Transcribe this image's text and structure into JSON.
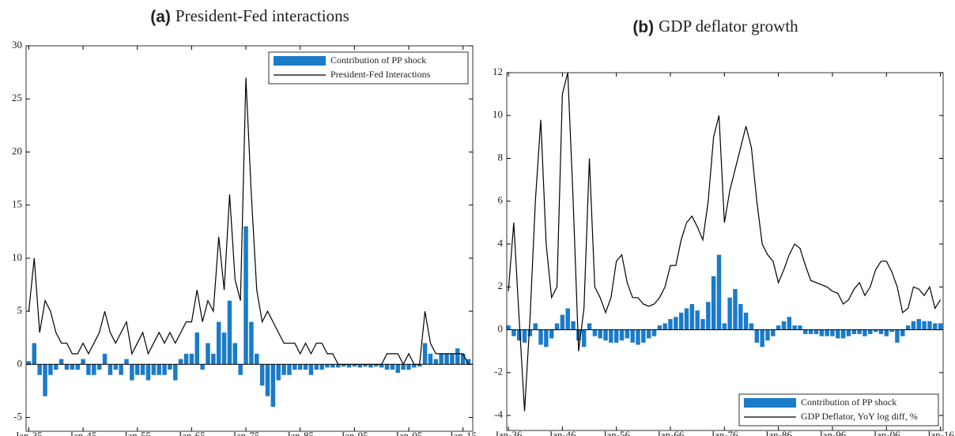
{
  "chart_data": [
    {
      "type": "bar_line",
      "title_label": "(a)",
      "title": "President-Fed interactions",
      "legend": "upper right",
      "x": [
        1935,
        1936,
        1937,
        1938,
        1939,
        1940,
        1941,
        1942,
        1943,
        1944,
        1945,
        1946,
        1947,
        1948,
        1949,
        1950,
        1951,
        1952,
        1953,
        1954,
        1955,
        1956,
        1957,
        1958,
        1959,
        1960,
        1961,
        1962,
        1963,
        1964,
        1965,
        1966,
        1967,
        1968,
        1969,
        1970,
        1971,
        1972,
        1973,
        1974,
        1975,
        1976,
        1977,
        1978,
        1979,
        1980,
        1981,
        1982,
        1983,
        1984,
        1985,
        1986,
        1987,
        1988,
        1989,
        1990,
        1991,
        1992,
        1993,
        1994,
        1995,
        1996,
        1997,
        1998,
        1999,
        2000,
        2001,
        2002,
        2003,
        2004,
        2005,
        2006,
        2007,
        2008,
        2009,
        2010,
        2011,
        2012,
        2013,
        2014,
        2015,
        2016
      ],
      "series": [
        {
          "name": "Contribution of PP shock",
          "kind": "bar",
          "color": "#1a7bc9",
          "values": [
            0.3,
            2,
            -1,
            -3,
            -1,
            -0.5,
            0.5,
            -0.5,
            -0.5,
            -0.5,
            0.5,
            -1,
            -1,
            -0.5,
            1,
            -1,
            -0.5,
            -1,
            0.5,
            -1.5,
            -1,
            -1,
            -1.5,
            -1,
            -1,
            -1,
            -0.5,
            -1.5,
            0.5,
            1,
            1,
            3,
            -0.5,
            2,
            1,
            4,
            3,
            6,
            2,
            -1,
            13,
            4,
            1,
            -2,
            -3,
            -4,
            -1.5,
            -1,
            -1,
            -0.5,
            -0.5,
            -0.5,
            -1,
            -0.5,
            -0.5,
            -0.3,
            -0.3,
            -0.3,
            -0.2,
            -0.3,
            -0.2,
            -0.3,
            -0.2,
            -0.3,
            -0.2,
            -0.3,
            -0.5,
            -0.5,
            -0.8,
            -0.5,
            -0.5,
            -0.3,
            -0.2,
            2,
            1,
            0.5,
            1,
            1,
            1,
            1.5,
            1,
            0.5
          ]
        },
        {
          "name": "President-Fed Interactions",
          "kind": "line",
          "color": "#000000",
          "values": [
            5,
            10,
            3,
            6,
            5,
            3,
            2,
            2,
            1,
            1,
            2,
            1,
            2,
            3,
            5,
            3,
            2,
            3,
            4,
            1,
            2,
            3,
            1,
            2,
            3,
            2,
            3,
            2,
            3,
            4,
            4,
            7,
            4,
            6,
            5,
            12,
            7,
            16,
            8,
            6,
            27,
            16,
            7,
            4,
            5,
            4,
            3,
            2,
            2,
            2,
            1,
            2,
            1,
            2,
            2,
            1,
            1,
            0,
            0,
            0,
            0,
            0,
            0,
            0,
            0,
            0,
            1,
            1,
            1,
            0,
            1,
            0,
            0,
            5,
            2,
            1,
            1,
            1,
            1,
            1,
            1,
            0
          ]
        }
      ],
      "xlim": [
        1934.5,
        2016.8
      ],
      "xticks": [
        {
          "value": 1935,
          "label": "Jan-35"
        },
        {
          "value": 1945,
          "label": "Jan-45"
        },
        {
          "value": 1955,
          "label": "Jan-55"
        },
        {
          "value": 1965,
          "label": "Jan-65"
        },
        {
          "value": 1975,
          "label": "Jan-75"
        },
        {
          "value": 1985,
          "label": "Jan-85"
        },
        {
          "value": 1995,
          "label": "Jan-95"
        },
        {
          "value": 2005,
          "label": "Jan-05"
        },
        {
          "value": 2015,
          "label": "Jan-15"
        }
      ],
      "ylim": [
        -6.3,
        30
      ],
      "yticks": [
        -5,
        0,
        5,
        10,
        15,
        20,
        25,
        30
      ]
    },
    {
      "type": "bar_line",
      "title_label": "(b)",
      "title": "GDP deflator growth",
      "legend": "lower right",
      "x": [
        1936,
        1937,
        1938,
        1939,
        1940,
        1941,
        1942,
        1943,
        1944,
        1945,
        1946,
        1947,
        1948,
        1949,
        1950,
        1951,
        1952,
        1953,
        1954,
        1955,
        1956,
        1957,
        1958,
        1959,
        1960,
        1961,
        1962,
        1963,
        1964,
        1965,
        1966,
        1967,
        1968,
        1969,
        1970,
        1971,
        1972,
        1973,
        1974,
        1975,
        1976,
        1977,
        1978,
        1979,
        1980,
        1981,
        1982,
        1983,
        1984,
        1985,
        1986,
        1987,
        1988,
        1989,
        1990,
        1991,
        1992,
        1993,
        1994,
        1995,
        1996,
        1997,
        1998,
        1999,
        2000,
        2001,
        2002,
        2003,
        2004,
        2005,
        2006,
        2007,
        2008,
        2009,
        2010,
        2011,
        2012,
        2013,
        2014,
        2015,
        2016
      ],
      "series": [
        {
          "name": "Contribution of PP shock",
          "kind": "bar",
          "color": "#1a7bc9",
          "values": [
            0.2,
            -0.3,
            -0.5,
            -0.6,
            -0.3,
            0.3,
            -0.7,
            -0.8,
            -0.4,
            0.3,
            0.7,
            1,
            0.4,
            -0.5,
            -0.8,
            0.3,
            -0.3,
            -0.4,
            -0.5,
            -0.6,
            -0.6,
            -0.5,
            -0.4,
            -0.6,
            -0.7,
            -0.6,
            -0.4,
            -0.3,
            0.2,
            0.3,
            0.5,
            0.6,
            0.8,
            1,
            1.2,
            0.9,
            0.5,
            1.3,
            2.5,
            3.5,
            0.3,
            1.5,
            1.9,
            1.2,
            0.8,
            0.3,
            -0.6,
            -0.8,
            -0.5,
            -0.3,
            0.2,
            0.4,
            0.6,
            0.2,
            0.2,
            -0.2,
            -0.2,
            -0.2,
            -0.3,
            -0.3,
            -0.3,
            -0.4,
            -0.4,
            -0.3,
            -0.2,
            -0.2,
            -0.3,
            -0.2,
            -0.1,
            -0.2,
            -0.3,
            -0.1,
            -0.6,
            -0.3,
            0.2,
            0.4,
            0.5,
            0.4,
            0.4,
            0.3,
            0.3
          ]
        },
        {
          "name": "GDP Deflator, YoY log diff, %",
          "kind": "line",
          "color": "#000000",
          "values": [
            1.8,
            5,
            0.5,
            -3.8,
            0.5,
            6,
            9.8,
            4,
            1.5,
            2,
            11,
            12,
            6,
            -1,
            1,
            8,
            2,
            1.5,
            0.8,
            1.5,
            3.2,
            3.5,
            2.2,
            1.5,
            1.5,
            1.2,
            1.1,
            1.2,
            1.5,
            2,
            3,
            3,
            4.2,
            5,
            5.3,
            4.8,
            4.2,
            6,
            9,
            10,
            5,
            6.5,
            7.5,
            8.5,
            9.5,
            8.5,
            6,
            4,
            3.5,
            3.2,
            2.2,
            2.8,
            3.5,
            4,
            3.8,
            3,
            2.3,
            2.2,
            2.1,
            2,
            1.8,
            1.7,
            1.2,
            1.4,
            1.9,
            2.2,
            1.6,
            2,
            2.8,
            3.2,
            3.2,
            2.7,
            2,
            0.8,
            1,
            2,
            1.9,
            1.6,
            2,
            1,
            1.4
          ]
        }
      ],
      "xlim": [
        1935.7,
        2016.5
      ],
      "xticks": [
        {
          "value": 1936,
          "label": "Jan-36"
        },
        {
          "value": 1946,
          "label": "Jan-46"
        },
        {
          "value": 1956,
          "label": "Jan-56"
        },
        {
          "value": 1966,
          "label": "Jan-66"
        },
        {
          "value": 1976,
          "label": "Jan-76"
        },
        {
          "value": 1986,
          "label": "Jan-86"
        },
        {
          "value": 1996,
          "label": "Jan-96"
        },
        {
          "value": 2006,
          "label": "Jan-06"
        },
        {
          "value": 2016,
          "label": "Jan-16"
        }
      ],
      "ylim": [
        -4.7,
        12
      ],
      "yticks": [
        -4,
        -2,
        0,
        2,
        4,
        6,
        8,
        10,
        12
      ]
    }
  ]
}
